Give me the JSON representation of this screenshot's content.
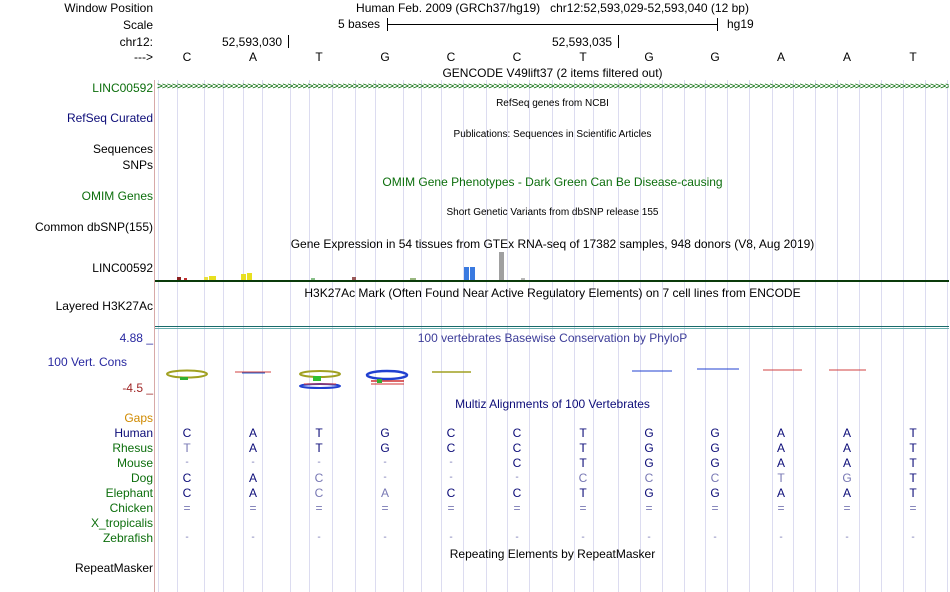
{
  "header": {
    "window_position_label": "Window Position",
    "window_position_value": "Human Feb. 2009 (GRCh37/hg19)   chr12:52,593,029-52,593,040 (12 bp)",
    "scale_label": "Scale",
    "scale_text": "5 bases",
    "scale_assembly": "hg19",
    "chrom_label": "chr12:",
    "coord_1": "52,593,030",
    "coord_2": "52,593,035",
    "strand_label": "--->",
    "bases": [
      "C",
      "A",
      "T",
      "G",
      "C",
      "C",
      "T",
      "G",
      "G",
      "A",
      "A",
      "T"
    ]
  },
  "tracks": {
    "gencode_title": "GENCODE V49lift37 (2 items filtered out)",
    "linc_label": "LINC00592",
    "refseq_title": "RefSeq genes from NCBI",
    "refseq_label": "RefSeq Curated",
    "publications_title": "Publications: Sequences in Scientific Articles",
    "sequences_label": "Sequences",
    "snps_label": "SNPs",
    "omim_title": "OMIM Gene Phenotypes - Dark Green Can Be Disease-causing",
    "omim_label": "OMIM Genes",
    "dbsnp_title": "Short Genetic Variants from dbSNP release 155",
    "dbsnp_label": "Common dbSNP(155)",
    "gtex_title": "Gene Expression in 54 tissues from GTEx RNA-seq of 17382 samples, 948 donors (V8, Aug 2019)",
    "gtex_label": "LINC00592",
    "h3k27ac_title": "H3K27Ac Mark (Often Found Near Active Regulatory Elements) on 7 cell lines from ENCODE",
    "h3k27ac_label": "Layered H3K27Ac",
    "phylop_title": "100 vertebrates Basewise Conservation by PhyloP",
    "phylop_label": "100 Vert. Cons",
    "phylop_max": "4.88 _",
    "phylop_min": "-4.5 _",
    "multiz_title": "Multiz Alignments of 100 Vertebrates",
    "gaps_label": "Gaps",
    "repeat_title": "Repeating Elements by RepeatMasker",
    "repeat_label": "RepeatMasker"
  },
  "alignment": {
    "species": [
      "Human",
      "Rhesus",
      "Mouse",
      "Dog",
      "Elephant",
      "Chicken",
      "X_tropicalis",
      "Zebrafish"
    ],
    "rows": [
      [
        "C",
        "A",
        "T",
        "G",
        "C",
        "C",
        "T",
        "G",
        "G",
        "A",
        "A",
        "T"
      ],
      [
        "T",
        "A",
        "T",
        "G",
        "C",
        "C",
        "T",
        "G",
        "G",
        "A",
        "A",
        "T"
      ],
      [
        "-",
        "-",
        "-",
        "-",
        "-",
        "C",
        "T",
        "G",
        "G",
        "A",
        "A",
        "T"
      ],
      [
        "C",
        "A",
        "C",
        "-",
        "-",
        "-",
        "C",
        "C",
        "C",
        "T",
        "G",
        "T"
      ],
      [
        "C",
        "A",
        "C",
        "A",
        "C",
        "C",
        "T",
        "G",
        "G",
        "A",
        "A",
        "T"
      ],
      [
        "=",
        "=",
        "=",
        "=",
        "=",
        "=",
        "=",
        "=",
        "=",
        "=",
        "=",
        "="
      ],
      [
        "",
        "",
        "",
        "",
        "",
        "",
        "",
        "",
        "",
        "",
        "",
        ""
      ],
      [
        "-",
        "-",
        "-",
        "-",
        "-",
        "-",
        "-",
        "-",
        "-",
        "-",
        "-",
        "-"
      ]
    ]
  },
  "colors": {
    "gencode_green": "#0c6e0c",
    "refseq_navy": "#0c0c78",
    "omim_green": "#0c6e0c",
    "phylop_blue": "#3c3c98",
    "phylop_max": "#2828a0",
    "phylop_min": "#a02828",
    "gaps_orange": "#d08a00",
    "species_green": "#0c6e0c",
    "bases_navy": "#0c0c78",
    "bases_diff": "#7878b4"
  }
}
